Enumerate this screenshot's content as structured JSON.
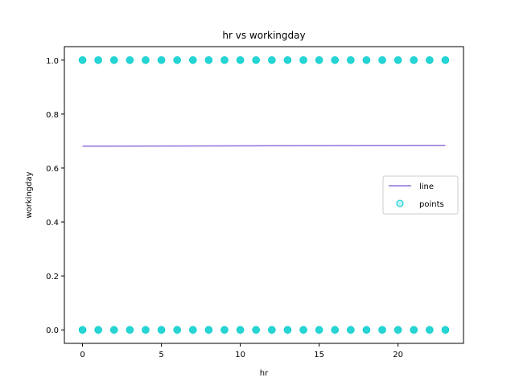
{
  "chart_data": {
    "type": "scatter",
    "title": "hr vs workingday",
    "xlabel": "hr",
    "ylabel": "workingday",
    "xlim": [
      -1.15,
      24.15
    ],
    "ylim": [
      -0.05,
      1.05
    ],
    "xticks": [
      0,
      5,
      10,
      15,
      20
    ],
    "xtick_labels": [
      "0",
      "5",
      "10",
      "15",
      "20"
    ],
    "yticks": [
      0.0,
      0.2,
      0.4,
      0.6,
      0.8,
      1.0
    ],
    "ytick_labels": [
      "0.0",
      "0.2",
      "0.4",
      "0.6",
      "0.8",
      "1.0"
    ],
    "grid": false,
    "legend_position": "center-right",
    "series": [
      {
        "name": "line",
        "kind": "line",
        "color": "#9370db",
        "x": [
          0,
          23
        ],
        "y": [
          0.681,
          0.684
        ]
      },
      {
        "name": "points",
        "kind": "scatter",
        "color": "#00cccc",
        "x": [
          0,
          1,
          2,
          3,
          4,
          5,
          6,
          7,
          8,
          9,
          10,
          11,
          12,
          13,
          14,
          15,
          16,
          17,
          18,
          19,
          20,
          21,
          22,
          23,
          0,
          1,
          2,
          3,
          4,
          5,
          6,
          7,
          8,
          9,
          10,
          11,
          12,
          13,
          14,
          15,
          16,
          17,
          18,
          19,
          20,
          21,
          22,
          23
        ],
        "y": [
          1,
          1,
          1,
          1,
          1,
          1,
          1,
          1,
          1,
          1,
          1,
          1,
          1,
          1,
          1,
          1,
          1,
          1,
          1,
          1,
          1,
          1,
          1,
          1,
          0,
          0,
          0,
          0,
          0,
          0,
          0,
          0,
          0,
          0,
          0,
          0,
          0,
          0,
          0,
          0,
          0,
          0,
          0,
          0,
          0,
          0,
          0,
          0
        ]
      }
    ]
  }
}
